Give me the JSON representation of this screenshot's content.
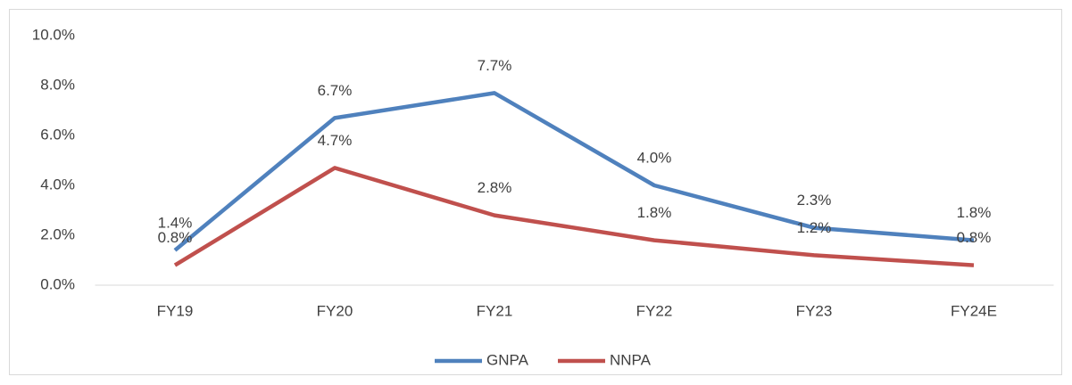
{
  "chart_data": {
    "type": "line",
    "categories": [
      "FY19",
      "FY20",
      "FY21",
      "FY22",
      "FY23",
      "FY24E"
    ],
    "series": [
      {
        "name": "GNPA",
        "color": "#4f81bd",
        "values": [
          1.4,
          6.7,
          7.7,
          4.0,
          2.3,
          1.8
        ],
        "value_labels": [
          "1.4%",
          "6.7%",
          "7.7%",
          "4.0%",
          "2.3%",
          "1.8%"
        ]
      },
      {
        "name": "NNPA",
        "color": "#c0504d",
        "values": [
          0.8,
          4.7,
          2.8,
          1.8,
          1.2,
          0.8
        ],
        "value_labels": [
          "0.8%",
          "4.7%",
          "2.8%",
          "1.8%",
          "1.2%",
          "0.8%"
        ]
      }
    ],
    "ylim": [
      0,
      10
    ],
    "yticks": [
      {
        "value": 0,
        "label": "0.0%"
      },
      {
        "value": 2,
        "label": "2.0%"
      },
      {
        "value": 4,
        "label": "4.0%"
      },
      {
        "value": 6,
        "label": "6.0%"
      },
      {
        "value": 8,
        "label": "8.0%"
      },
      {
        "value": 10,
        "label": "10.0%"
      }
    ],
    "grid": false,
    "legend": "bottom"
  }
}
